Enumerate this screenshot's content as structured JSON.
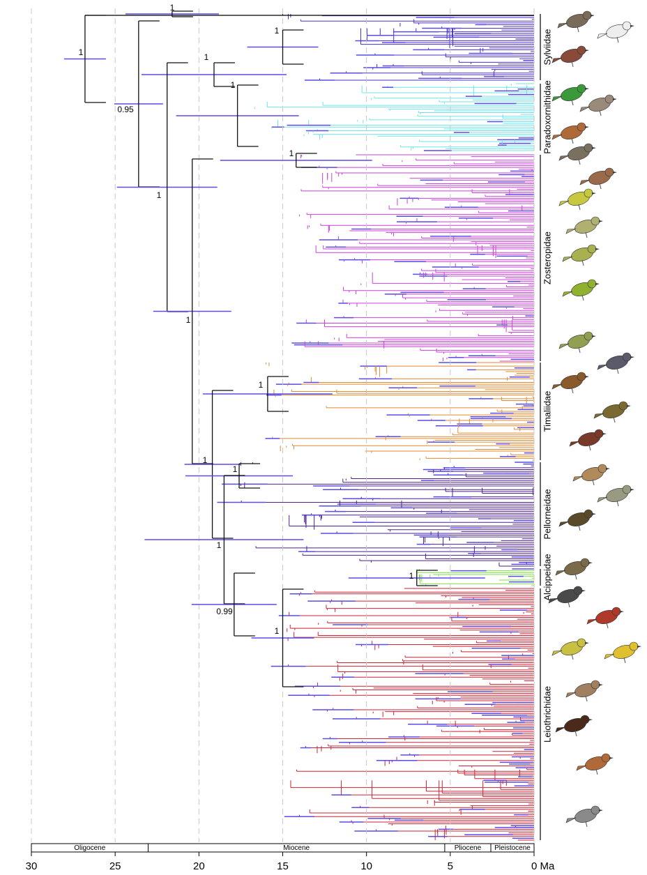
{
  "chart_data": {
    "type": "phylogeny",
    "xlim": [
      30,
      0
    ],
    "xticks": [
      30,
      25,
      20,
      15,
      10,
      5,
      {
        "value": 0,
        "label": "0 Ma"
      }
    ],
    "grid": true,
    "epochs": [
      "Oligocene",
      "Miocene",
      "Pliocene",
      "Pleistocene"
    ],
    "epoch_boundaries": [
      23.03,
      5.33,
      2.58
    ],
    "clades": [
      {
        "name": "Sylviidae",
        "color": "#4a2fc8"
      },
      {
        "name": "Paradoxornithidae",
        "color": "#6fe3ea"
      },
      {
        "name": "Zosteropidae",
        "color": "#cc3fdc"
      },
      {
        "name": "Timaliidae",
        "color": "#e08a34"
      },
      {
        "name": "Pellorneidae",
        "color": "#4b1f8f"
      },
      {
        "name": "Alcippeidae",
        "color": "#7ee043"
      },
      {
        "name": "Leiothrichidae",
        "color": "#cc2233"
      }
    ],
    "nodes": [
      {
        "label": "1",
        "age": 26.8
      },
      {
        "label": "1",
        "age": 21.6
      },
      {
        "label": "1",
        "age": 19.1
      },
      {
        "label": "1",
        "age": 15
      },
      {
        "label": "1",
        "age": 17.7
      },
      {
        "label": "0.95",
        "age": 23.6
      },
      {
        "label": "1",
        "age": 21.9
      },
      {
        "label": "1",
        "age": 14.2
      },
      {
        "label": "1",
        "age": 20.4
      },
      {
        "label": "1",
        "age": 15.9
      },
      {
        "label": "1",
        "age": 19.2
      },
      {
        "label": "1",
        "age": 17.6
      },
      {
        "label": "1",
        "age": 18.5
      },
      {
        "label": "0.99",
        "age": 17.9
      },
      {
        "label": "1",
        "age": 7
      },
      {
        "label": "1",
        "age": 15
      }
    ]
  }
}
